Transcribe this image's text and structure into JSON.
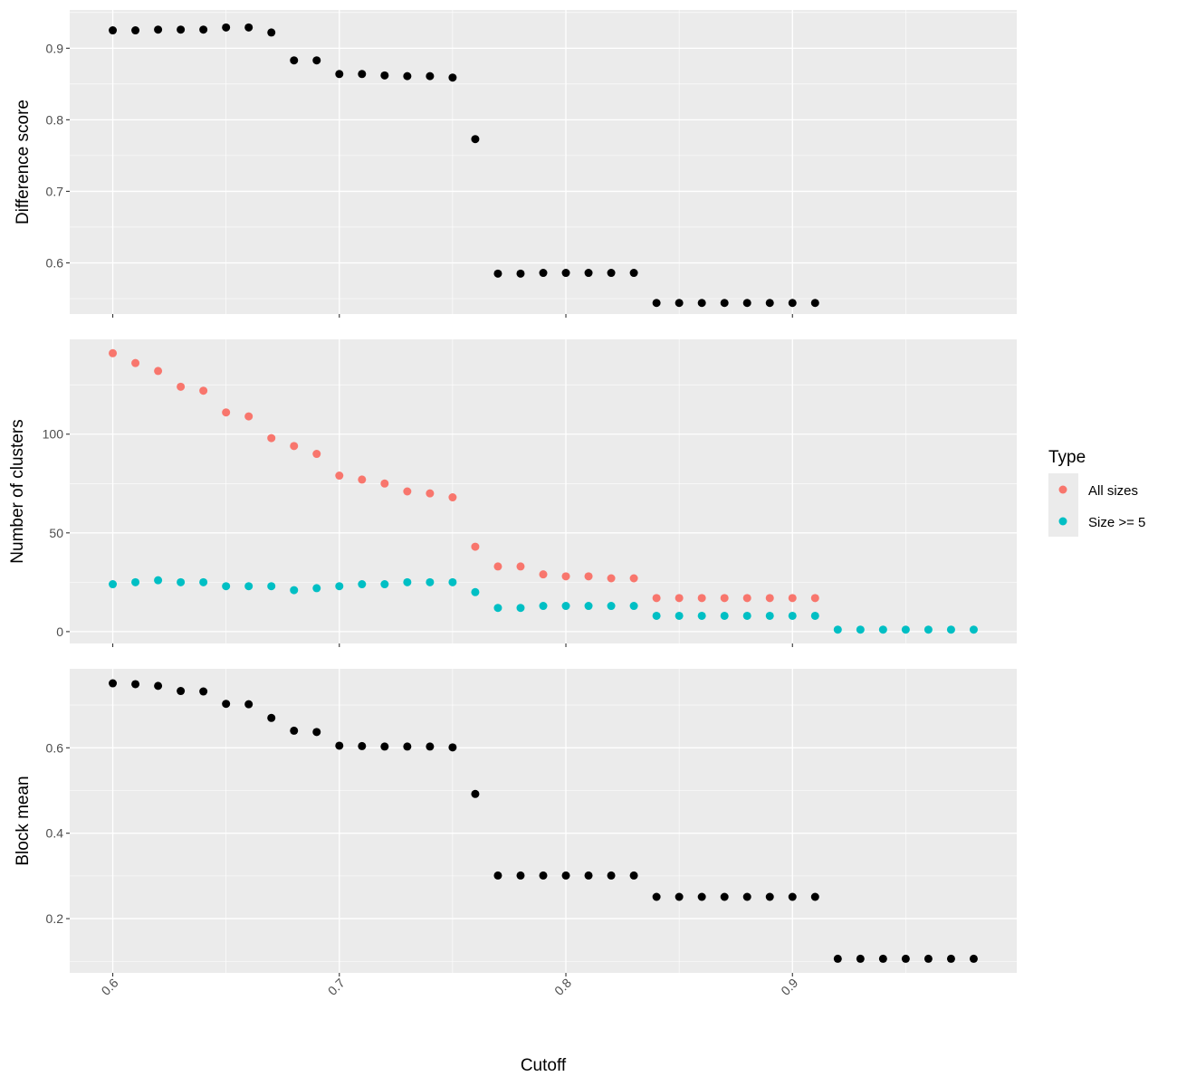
{
  "chart_data": {
    "type": "scatter",
    "xlabel": "Cutoff",
    "x_ticks": [
      0.6,
      0.7,
      0.8,
      0.9
    ],
    "x_tick_labels": [
      "0.6",
      "0.7",
      "0.8",
      "0.9"
    ],
    "xlim": [
      0.581,
      0.999
    ],
    "colors": {
      "black": "#000000",
      "all_sizes": "#F8766D",
      "size_ge_5": "#00BFC4"
    },
    "legend": {
      "title": "Type",
      "position": "right",
      "entries": [
        {
          "label": "All sizes",
          "color": "#F8766D"
        },
        {
          "label": "Size >= 5",
          "color": "#00BFC4"
        }
      ]
    },
    "panels": [
      {
        "ylabel": "Difference score",
        "ylim": [
          0.5285,
          0.9535
        ],
        "y_ticks": [
          0.6,
          0.7,
          0.8,
          0.9
        ],
        "y_tick_labels": [
          "0.6",
          "0.7",
          "0.8",
          "0.9"
        ],
        "series": [
          {
            "color": "#000000",
            "x": [
              0.6,
              0.61,
              0.62,
              0.63,
              0.64,
              0.65,
              0.66,
              0.67,
              0.68,
              0.69,
              0.7,
              0.71,
              0.72,
              0.73,
              0.74,
              0.75,
              0.76,
              0.77,
              0.78,
              0.79,
              0.8,
              0.81,
              0.82,
              0.83,
              0.84,
              0.85,
              0.86,
              0.87,
              0.88,
              0.89,
              0.9,
              0.91
            ],
            "y": [
              0.925,
              0.925,
              0.926,
              0.926,
              0.926,
              0.929,
              0.929,
              0.922,
              0.883,
              0.883,
              0.864,
              0.864,
              0.862,
              0.861,
              0.861,
              0.859,
              0.773,
              0.585,
              0.585,
              0.586,
              0.586,
              0.586,
              0.586,
              0.586,
              0.544,
              0.544,
              0.544,
              0.544,
              0.544,
              0.544,
              0.544,
              0.544
            ]
          }
        ]
      },
      {
        "ylabel": "Number of clusters",
        "ylim": [
          -6,
          148
        ],
        "y_ticks": [
          0,
          50,
          100
        ],
        "y_tick_labels": [
          "0",
          "50",
          "100"
        ],
        "series": [
          {
            "name": "All sizes",
            "color": "#F8766D",
            "x": [
              0.6,
              0.61,
              0.62,
              0.63,
              0.64,
              0.65,
              0.66,
              0.67,
              0.68,
              0.69,
              0.7,
              0.71,
              0.72,
              0.73,
              0.74,
              0.75,
              0.76,
              0.77,
              0.78,
              0.79,
              0.8,
              0.81,
              0.82,
              0.83,
              0.84,
              0.85,
              0.86,
              0.87,
              0.88,
              0.89,
              0.9,
              0.91
            ],
            "y": [
              141,
              136,
              132,
              124,
              122,
              111,
              109,
              98,
              94,
              90,
              79,
              77,
              75,
              71,
              70,
              68,
              43,
              33,
              33,
              29,
              28,
              28,
              27,
              27,
              17,
              17,
              17,
              17,
              17,
              17,
              17,
              17
            ]
          },
          {
            "name": "Size >= 5",
            "color": "#00BFC4",
            "x": [
              0.6,
              0.61,
              0.62,
              0.63,
              0.64,
              0.65,
              0.66,
              0.67,
              0.68,
              0.69,
              0.7,
              0.71,
              0.72,
              0.73,
              0.74,
              0.75,
              0.76,
              0.77,
              0.78,
              0.79,
              0.8,
              0.81,
              0.82,
              0.83,
              0.84,
              0.85,
              0.86,
              0.87,
              0.88,
              0.89,
              0.9,
              0.91,
              0.92,
              0.93,
              0.94,
              0.95,
              0.96,
              0.97,
              0.98
            ],
            "y": [
              24,
              25,
              26,
              25,
              25,
              23,
              23,
              23,
              21,
              22,
              23,
              24,
              24,
              25,
              25,
              25,
              20,
              12,
              12,
              13,
              13,
              13,
              13,
              13,
              8,
              8,
              8,
              8,
              8,
              8,
              8,
              8,
              1,
              1,
              1,
              1,
              1,
              1,
              1
            ]
          }
        ]
      },
      {
        "ylabel": "Block mean",
        "ylim": [
          0.073,
          0.785
        ],
        "y_ticks": [
          0.2,
          0.4,
          0.6
        ],
        "y_tick_labels": [
          "0.2",
          "0.4",
          "0.6"
        ],
        "series": [
          {
            "color": "#000000",
            "x": [
              0.6,
              0.61,
              0.62,
              0.63,
              0.64,
              0.65,
              0.66,
              0.67,
              0.68,
              0.69,
              0.7,
              0.71,
              0.72,
              0.73,
              0.74,
              0.75,
              0.76,
              0.77,
              0.78,
              0.79,
              0.8,
              0.81,
              0.82,
              0.83,
              0.84,
              0.85,
              0.86,
              0.87,
              0.88,
              0.89,
              0.9,
              0.91,
              0.92,
              0.93,
              0.94,
              0.95,
              0.96,
              0.97,
              0.98
            ],
            "y": [
              0.751,
              0.749,
              0.745,
              0.733,
              0.732,
              0.703,
              0.702,
              0.67,
              0.64,
              0.637,
              0.605,
              0.604,
              0.603,
              0.603,
              0.603,
              0.601,
              0.492,
              0.301,
              0.301,
              0.301,
              0.301,
              0.301,
              0.301,
              0.301,
              0.251,
              0.251,
              0.251,
              0.251,
              0.251,
              0.251,
              0.251,
              0.251,
              0.106,
              0.106,
              0.106,
              0.106,
              0.106,
              0.106,
              0.106
            ]
          }
        ]
      }
    ]
  }
}
